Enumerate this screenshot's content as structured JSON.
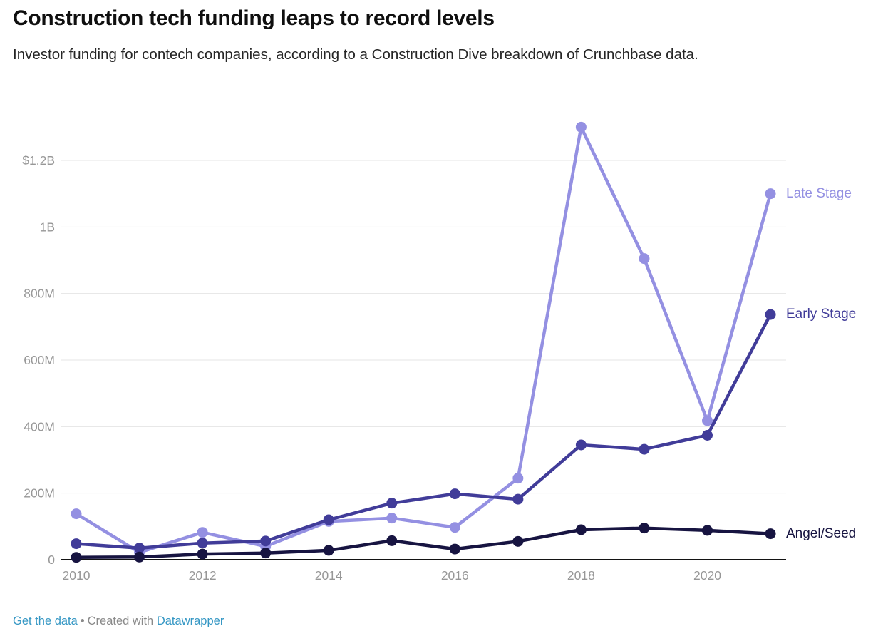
{
  "header": {
    "title": "Construction tech funding leaps to record levels",
    "subtitle": "Investor funding for contech companies, according to a Construction Dive breakdown of Crunchbase data."
  },
  "chart_data": {
    "type": "line",
    "x": [
      2010,
      2011,
      2012,
      2013,
      2014,
      2015,
      2016,
      2017,
      2018,
      2019,
      2020,
      2021
    ],
    "x_ticks": [
      2010,
      2012,
      2014,
      2016,
      2018,
      2020
    ],
    "y_ticks": [
      {
        "value": 0,
        "label": "0"
      },
      {
        "value": 200,
        "label": "200M"
      },
      {
        "value": 400,
        "label": "400M"
      },
      {
        "value": 600,
        "label": "600M"
      },
      {
        "value": 800,
        "label": "800M"
      },
      {
        "value": 1000,
        "label": "1B"
      },
      {
        "value": 1200,
        "label": "$1.2B"
      }
    ],
    "values_unit": "USD millions",
    "ylim": [
      0,
      1310
    ],
    "grid": "horizontal",
    "legend_position": "direct-right-labels",
    "series": [
      {
        "name": "Late Stage",
        "color": "#9490E2",
        "values": [
          138,
          22,
          82,
          40,
          115,
          125,
          97,
          245,
          1300,
          905,
          418,
          1100
        ]
      },
      {
        "name": "Early Stage",
        "color": "#413C99",
        "values": [
          48,
          35,
          50,
          56,
          120,
          170,
          198,
          182,
          345,
          332,
          374,
          737
        ]
      },
      {
        "name": "Angel/Seed",
        "color": "#171441",
        "values": [
          7,
          8,
          17,
          20,
          28,
          57,
          32,
          55,
          90,
          95,
          88,
          78
        ]
      }
    ]
  },
  "style": {
    "gridline_color": "#e4e4e4",
    "axis_line_color": "#131313",
    "tick_label_color": "#979797"
  },
  "footer": {
    "get_data_label": "Get the data",
    "separator": "•",
    "created_with": "Created with",
    "datawrapper_label": "Datawrapper"
  }
}
